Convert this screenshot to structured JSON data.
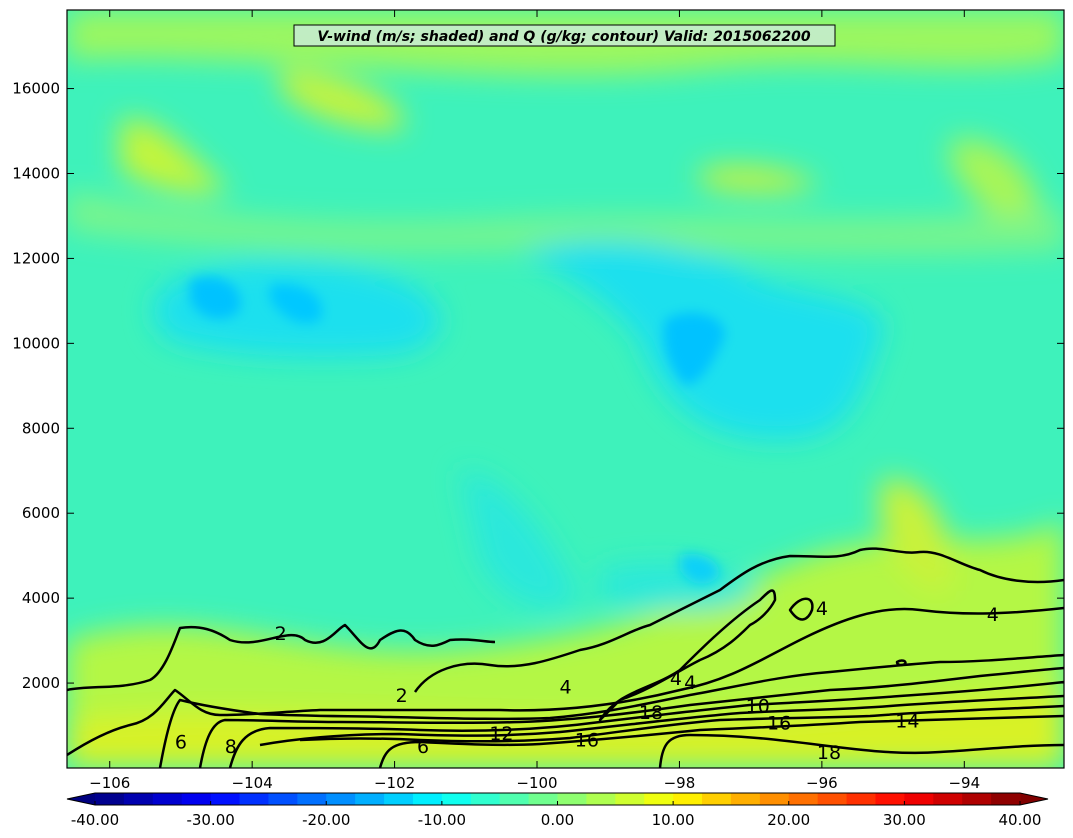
{
  "chart_data": {
    "type": "contour",
    "title": "V-wind (m/s; shaded) and Q (g/kg; contour) Valid: 2015062200",
    "xlabel": "",
    "ylabel": "",
    "xlim": [
      -106.6,
      -92.6
    ],
    "ylim": [
      0,
      17850
    ],
    "x_ticks": [
      -106,
      -104,
      -102,
      -100,
      -98,
      -96,
      -94
    ],
    "x_tick_labels": [
      "−106",
      "−104",
      "−102",
      "−100",
      "−98",
      "−96",
      "−94"
    ],
    "y_ticks": [
      2000,
      4000,
      6000,
      8000,
      10000,
      12000,
      14000,
      16000
    ],
    "y_tick_labels": [
      "2000",
      "4000",
      "6000",
      "8000",
      "10000",
      "12000",
      "14000",
      "16000"
    ],
    "grid": false,
    "shading": {
      "variable": "V-wind",
      "units": "m/s",
      "levels_min": -40,
      "levels_max": 40,
      "level_step": 2.5,
      "colormap": "jet",
      "extend": "both",
      "colorbar_ticks": [
        -40,
        -30,
        -20,
        -10,
        0,
        10,
        20,
        30,
        40
      ],
      "colorbar_tick_labels": [
        "-40.00",
        "-30.00",
        "-20.00",
        "-10.00",
        "0.00",
        "10.00",
        "20.00",
        "30.00",
        "40.00"
      ],
      "colorbar_placement": "bottom"
    },
    "contours": {
      "variable": "Q",
      "units": "g/kg",
      "color": "#000000",
      "labels": [
        {
          "text": "2",
          "x": -103.6,
          "y": 3150
        },
        {
          "text": "2",
          "x": -101.9,
          "y": 1700
        },
        {
          "text": "4",
          "x": -99.6,
          "y": 1900
        },
        {
          "text": "4",
          "x": -98.05,
          "y": 2100
        },
        {
          "text": "4",
          "x": -97.85,
          "y": 2000
        },
        {
          "text": "4",
          "x": -96.0,
          "y": 3750
        },
        {
          "text": "4",
          "x": -93.6,
          "y": 3600
        },
        {
          "text": "6",
          "x": -105.0,
          "y": 600
        },
        {
          "text": "8",
          "x": -104.3,
          "y": 500
        },
        {
          "text": "6",
          "x": -101.6,
          "y": 500
        },
        {
          "text": "12",
          "x": -100.5,
          "y": 800
        },
        {
          "text": "16",
          "x": -99.3,
          "y": 650
        },
        {
          "text": "18",
          "x": -98.4,
          "y": 1300
        },
        {
          "text": "10",
          "x": -96.9,
          "y": 1450
        },
        {
          "text": "16",
          "x": -96.6,
          "y": 1050
        },
        {
          "text": "14",
          "x": -94.8,
          "y": 1100
        },
        {
          "text": "18",
          "x": -95.9,
          "y": 350
        }
      ]
    },
    "colors": {
      "background_field": "#3ef2bb",
      "contour_line": "#000000"
    }
  }
}
